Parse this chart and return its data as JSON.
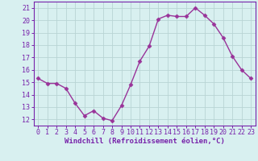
{
  "x": [
    0,
    1,
    2,
    3,
    4,
    5,
    6,
    7,
    8,
    9,
    10,
    11,
    12,
    13,
    14,
    15,
    16,
    17,
    18,
    19,
    20,
    21,
    22,
    23
  ],
  "y": [
    15.3,
    14.9,
    14.9,
    14.5,
    13.3,
    12.3,
    12.7,
    12.1,
    11.9,
    13.1,
    14.8,
    16.7,
    17.9,
    20.1,
    20.4,
    20.3,
    20.3,
    21.0,
    20.4,
    19.7,
    18.6,
    17.1,
    16.0,
    15.3
  ],
  "line_color": "#993399",
  "marker": "D",
  "markersize": 2.5,
  "linewidth": 1.0,
  "bg_color": "#d8f0f0",
  "grid_color": "#b8d4d4",
  "xlabel": "Windchill (Refroidissement éolien,°C)",
  "xlabel_fontsize": 6.5,
  "ylabel_ticks": [
    12,
    13,
    14,
    15,
    16,
    17,
    18,
    19,
    20,
    21
  ],
  "xlim": [
    -0.5,
    23.5
  ],
  "ylim": [
    11.5,
    21.5
  ],
  "xtick_labels": [
    "0",
    "1",
    "2",
    "3",
    "4",
    "5",
    "6",
    "7",
    "8",
    "9",
    "10",
    "11",
    "12",
    "13",
    "14",
    "15",
    "16",
    "17",
    "18",
    "19",
    "20",
    "21",
    "22",
    "23"
  ],
  "tick_fontsize": 6.0,
  "label_color": "#7722aa"
}
